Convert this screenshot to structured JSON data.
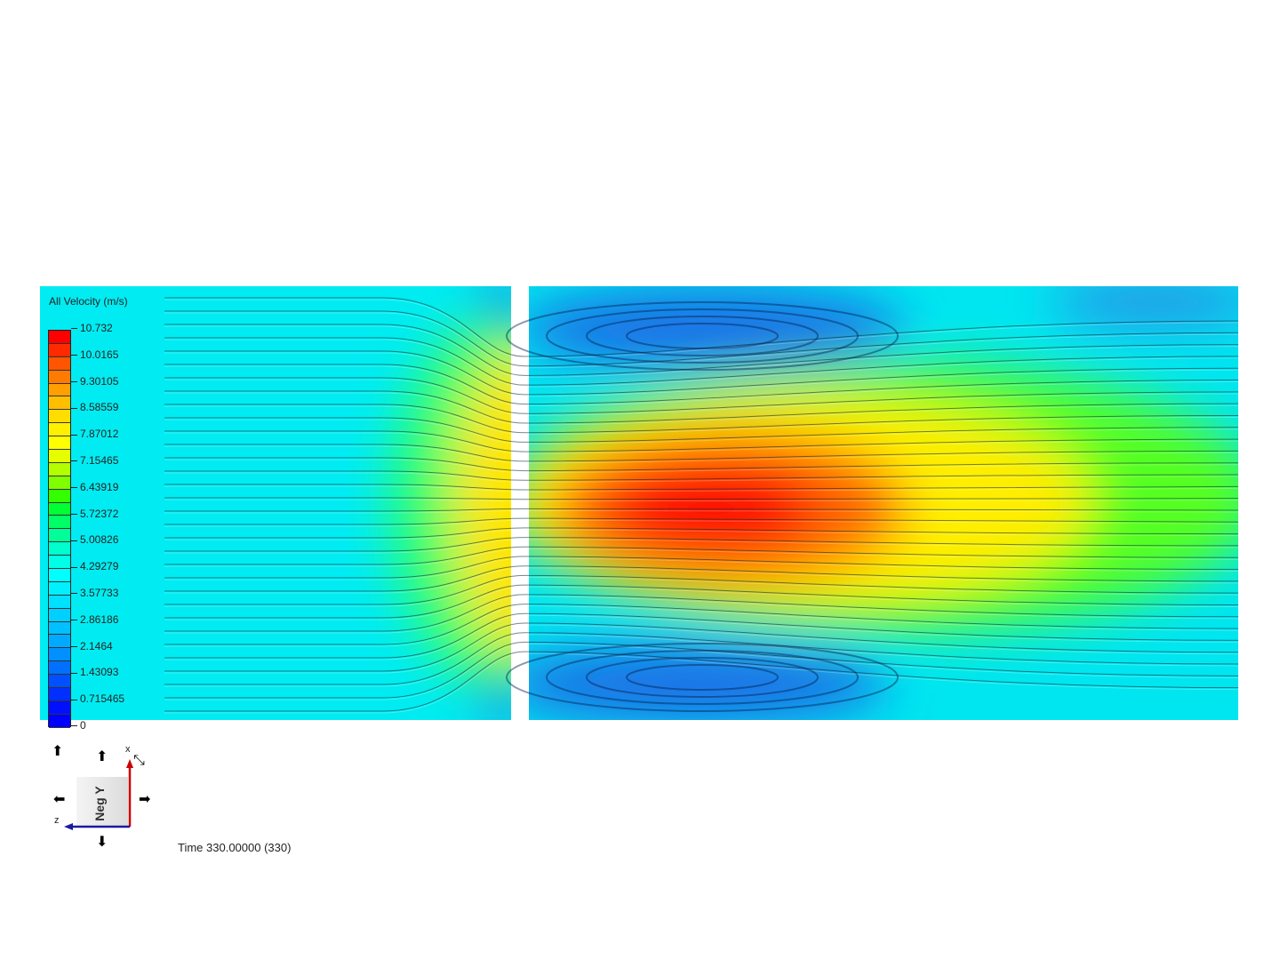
{
  "legend": {
    "title": "All Velocity (m/s)",
    "labels": [
      "10.732",
      "10.0165",
      "9.30105",
      "8.58559",
      "7.87012",
      "7.15465",
      "6.43919",
      "5.72372",
      "5.00826",
      "4.29279",
      "3.57733",
      "2.86186",
      "2.1464",
      "1.43093",
      "0.715465",
      "0"
    ],
    "band_colors": [
      "#ff0000",
      "#ff2a00",
      "#ff5500",
      "#ff7a00",
      "#ff9f00",
      "#ffbf00",
      "#ffdd00",
      "#fff000",
      "#ffff00",
      "#e6ff00",
      "#b3ff00",
      "#80ff00",
      "#33ff00",
      "#00ff33",
      "#00ff66",
      "#00ff99",
      "#00ffcc",
      "#00ffe6",
      "#00ffff",
      "#00f0ff",
      "#00e0ff",
      "#00d0ff",
      "#00c0ff",
      "#00aaff",
      "#0090ff",
      "#0070ff",
      "#0050ff",
      "#0030ff",
      "#0010ff",
      "#0000ff"
    ]
  },
  "view_cube": {
    "face_label": "Neg Y",
    "axis_x": "x",
    "axis_z": "z"
  },
  "time_label": "Time 330.00000 (330)",
  "colors": {
    "background": "#00f0f0",
    "jet_core": "#ff0000",
    "recirculation": "#1e70e6"
  }
}
